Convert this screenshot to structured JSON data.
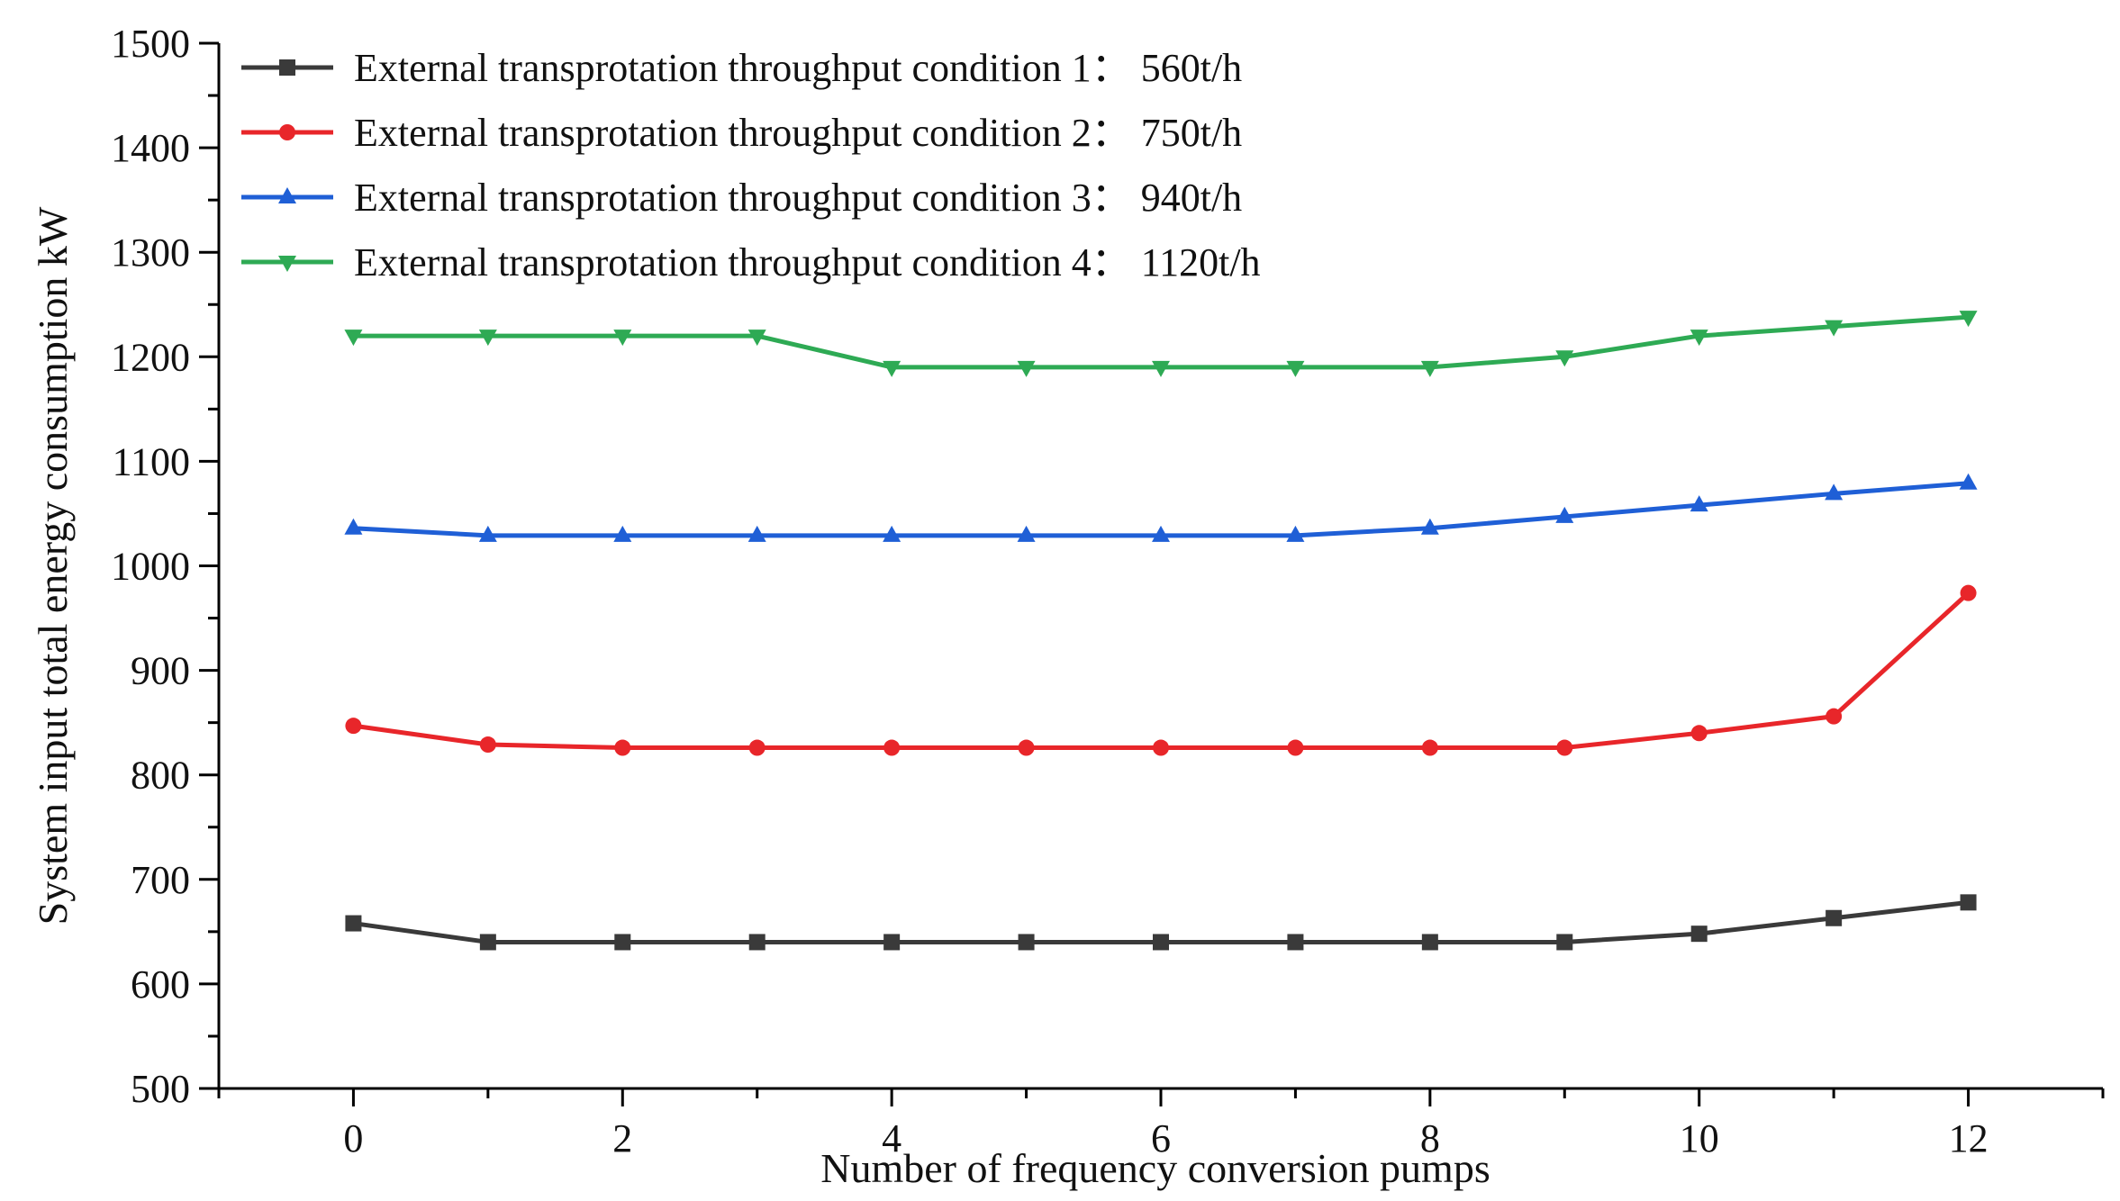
{
  "chart_data": {
    "type": "line",
    "title": "",
    "xlabel": "Number of frequency conversion pumps",
    "ylabel": "System input total energy consumption kW",
    "x": [
      0,
      1,
      2,
      3,
      4,
      5,
      6,
      7,
      8,
      9,
      10,
      11,
      12
    ],
    "xlim": [
      -1,
      13
    ],
    "ylim": [
      500,
      1500
    ],
    "x_ticks": [
      0,
      2,
      4,
      6,
      8,
      10,
      12
    ],
    "x_tick_labels": [
      "0",
      "2",
      "4",
      "6",
      "8",
      "10",
      "12"
    ],
    "y_ticks": [
      500,
      600,
      700,
      800,
      900,
      1000,
      1100,
      1200,
      1300,
      1400,
      1500
    ],
    "y_tick_labels": [
      "500",
      "600",
      "700",
      "800",
      "900",
      "1000",
      "1100",
      "1200",
      "1300",
      "1400",
      "1500"
    ],
    "legend_position": "top-left",
    "series": [
      {
        "name": "External transprotation throughput condition 1： 560t/h",
        "color": "#3a3a3a",
        "marker": "square",
        "values": [
          658,
          640,
          640,
          640,
          640,
          640,
          640,
          640,
          640,
          640,
          648,
          663,
          678
        ]
      },
      {
        "name": "External transprotation throughput condition 2： 750t/h",
        "color": "#e8262a",
        "marker": "circle",
        "values": [
          847,
          829,
          826,
          826,
          826,
          826,
          826,
          826,
          826,
          826,
          840,
          856,
          974
        ]
      },
      {
        "name": "External transprotation throughput condition 3： 940t/h",
        "color": "#1f5fd6",
        "marker": "triangle-up",
        "values": [
          1036,
          1029,
          1029,
          1029,
          1029,
          1029,
          1029,
          1029,
          1036,
          1047,
          1058,
          1069,
          1079
        ]
      },
      {
        "name": "External transprotation throughput condition 4： 1120t/h",
        "color": "#2eaa54",
        "marker": "triangle-down",
        "values": [
          1220,
          1220,
          1220,
          1220,
          1190,
          1190,
          1190,
          1190,
          1190,
          1200,
          1220,
          1229,
          1238
        ]
      }
    ]
  }
}
